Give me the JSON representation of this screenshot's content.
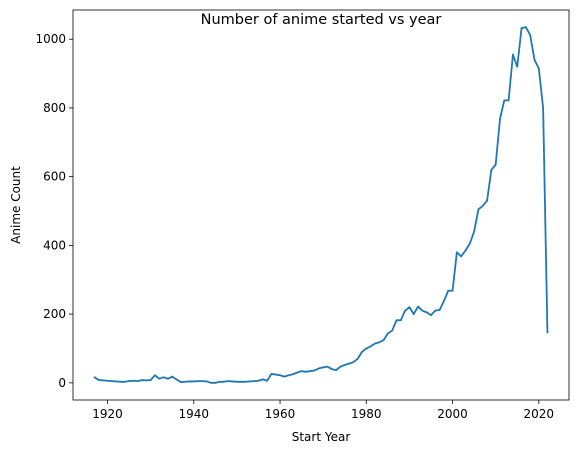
{
  "chart_data": {
    "type": "line",
    "title": "Number of anime started vs year",
    "xlabel": "Start Year",
    "ylabel": "Anime Count",
    "xlim": [
      1912,
      2027
    ],
    "ylim": [
      -50,
      1085
    ],
    "xticks": [
      1920,
      1940,
      1960,
      1980,
      2000,
      2020
    ],
    "yticks": [
      0,
      200,
      400,
      600,
      800,
      1000
    ],
    "grid": false,
    "line_color": "#1f77b4",
    "series": [
      {
        "x": [
          1917,
          1918,
          1919,
          1920,
          1921,
          1922,
          1923,
          1924,
          1925,
          1926,
          1927,
          1928,
          1929,
          1930,
          1931,
          1932,
          1933,
          1934,
          1935,
          1936,
          1937,
          1938,
          1939,
          1940,
          1941,
          1942,
          1943,
          1944,
          1945,
          1946,
          1947,
          1948,
          1949,
          1950,
          1951,
          1952,
          1953,
          1954,
          1955,
          1956,
          1957,
          1958,
          1959,
          1960,
          1961,
          1962,
          1963,
          1964,
          1965,
          1966,
          1967,
          1968,
          1969,
          1970,
          1971,
          1972,
          1973,
          1974,
          1975,
          1976,
          1977,
          1978,
          1979,
          1980,
          1981,
          1982,
          1983,
          1984,
          1985,
          1986,
          1987,
          1988,
          1989,
          1990,
          1991,
          1992,
          1993,
          1994,
          1995,
          1996,
          1997,
          1998,
          1999,
          2000,
          2001,
          2002,
          2003,
          2004,
          2005,
          2006,
          2007,
          2008,
          2009,
          2010,
          2011,
          2012,
          2013,
          2014,
          2015,
          2016,
          2017,
          2018,
          2019,
          2020,
          2021,
          2022
        ],
        "y": [
          16,
          8,
          7,
          6,
          5,
          4,
          3,
          3,
          5,
          6,
          5,
          8,
          7,
          8,
          22,
          12,
          16,
          12,
          18,
          10,
          2,
          3,
          4,
          4,
          5,
          5,
          4,
          0,
          0,
          3,
          3,
          5,
          4,
          3,
          3,
          3,
          4,
          5,
          6,
          10,
          6,
          26,
          24,
          22,
          18,
          22,
          25,
          30,
          34,
          32,
          34,
          36,
          42,
          45,
          47,
          40,
          37,
          47,
          52,
          56,
          60,
          70,
          90,
          100,
          106,
          114,
          118,
          124,
          144,
          152,
          182,
          182,
          210,
          220,
          200,
          222,
          210,
          205,
          197,
          210,
          212,
          238,
          268,
          268,
          380,
          368,
          385,
          405,
          440,
          505,
          515,
          530,
          620,
          635,
          768,
          822,
          822,
          955,
          920,
          1032,
          1035,
          1012,
          940,
          915,
          800,
          147
        ]
      }
    ]
  }
}
